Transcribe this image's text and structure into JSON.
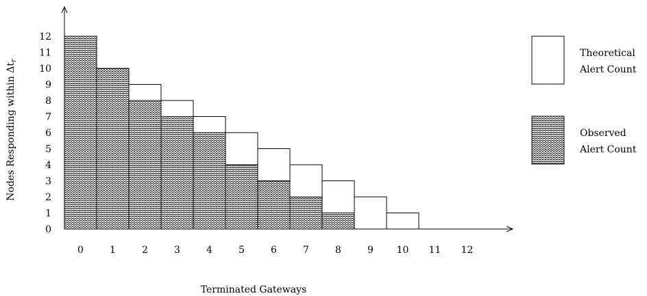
{
  "chart_data": {
    "type": "bar",
    "title": "",
    "xlabel": "Terminated Gateways",
    "ylabel": "Nodes Responding within Δt",
    "ylabel_subscript": "r",
    "categories": [
      "0",
      "1",
      "2",
      "3",
      "4",
      "5",
      "6",
      "7",
      "8",
      "9",
      "10",
      "11",
      "12"
    ],
    "y_ticks": [
      "0",
      "1",
      "2",
      "3",
      "4",
      "5",
      "6",
      "7",
      "8",
      "9",
      "10",
      "11",
      "12"
    ],
    "ylim": [
      0,
      12
    ],
    "series": [
      {
        "name": "Theoretical Alert Count",
        "style": "blank",
        "values": [
          12,
          10,
          9,
          8,
          7,
          6,
          5,
          4,
          3,
          2,
          1,
          0,
          0
        ]
      },
      {
        "name": "Observed Alert Count",
        "style": "scale-hatch",
        "values": [
          12,
          10,
          8,
          7,
          6,
          4,
          3,
          2,
          1,
          0,
          0,
          0,
          0
        ]
      }
    ],
    "legend": {
      "position": "right",
      "items": [
        {
          "line1": "Theoretical",
          "line2": "Alert Count",
          "style": "blank"
        },
        {
          "line1": "Observed",
          "line2": "Alert Count",
          "style": "scale-hatch"
        }
      ]
    },
    "grid": false
  }
}
